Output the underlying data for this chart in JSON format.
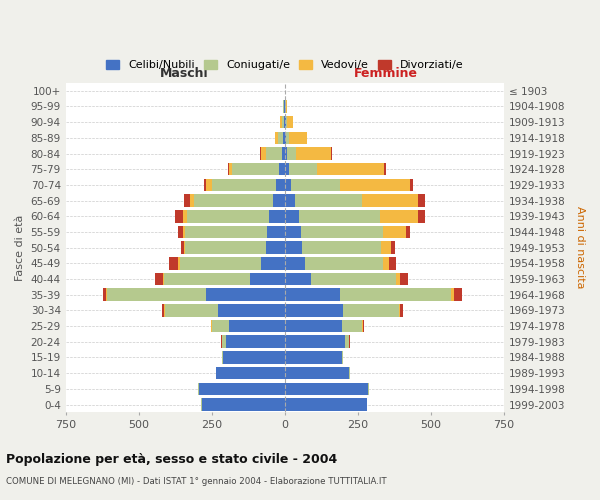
{
  "age_groups": [
    "0-4",
    "5-9",
    "10-14",
    "15-19",
    "20-24",
    "25-29",
    "30-34",
    "35-39",
    "40-44",
    "45-49",
    "50-54",
    "55-59",
    "60-64",
    "65-69",
    "70-74",
    "75-79",
    "80-84",
    "85-89",
    "90-94",
    "95-99",
    "100+"
  ],
  "birth_years": [
    "1999-2003",
    "1994-1998",
    "1989-1993",
    "1984-1988",
    "1979-1983",
    "1974-1978",
    "1969-1973",
    "1964-1968",
    "1959-1963",
    "1954-1958",
    "1949-1953",
    "1944-1948",
    "1939-1943",
    "1934-1938",
    "1929-1933",
    "1924-1928",
    "1919-1923",
    "1914-1918",
    "1909-1913",
    "1904-1908",
    "≤ 1903"
  ],
  "males": {
    "celibi": [
      285,
      295,
      235,
      210,
      200,
      190,
      230,
      270,
      120,
      80,
      65,
      60,
      55,
      40,
      30,
      20,
      10,
      5,
      3,
      2,
      0
    ],
    "coniugati": [
      2,
      3,
      2,
      5,
      15,
      60,
      180,
      340,
      295,
      280,
      275,
      280,
      280,
      270,
      220,
      160,
      55,
      20,
      8,
      3,
      0
    ],
    "vedovi": [
      0,
      0,
      0,
      0,
      1,
      1,
      2,
      3,
      3,
      5,
      5,
      10,
      15,
      15,
      20,
      10,
      18,
      10,
      5,
      2,
      0
    ],
    "divorziati": [
      0,
      0,
      0,
      0,
      1,
      2,
      8,
      8,
      25,
      30,
      10,
      15,
      25,
      20,
      8,
      5,
      2,
      0,
      0,
      0,
      0
    ]
  },
  "females": {
    "nubili": [
      280,
      285,
      220,
      195,
      205,
      195,
      200,
      190,
      90,
      70,
      60,
      55,
      50,
      35,
      20,
      15,
      8,
      5,
      4,
      2,
      0
    ],
    "coniugate": [
      2,
      3,
      2,
      5,
      15,
      70,
      190,
      380,
      290,
      265,
      270,
      280,
      275,
      230,
      170,
      95,
      30,
      10,
      5,
      2,
      0
    ],
    "vedove": [
      0,
      0,
      0,
      0,
      1,
      2,
      5,
      10,
      15,
      20,
      35,
      80,
      130,
      190,
      240,
      230,
      120,
      60,
      20,
      5,
      0
    ],
    "divorziate": [
      0,
      0,
      0,
      0,
      1,
      3,
      8,
      25,
      25,
      25,
      12,
      15,
      25,
      25,
      10,
      8,
      2,
      0,
      0,
      0,
      0
    ]
  },
  "colors": {
    "celibi": "#4472c4",
    "coniugati": "#b5c98e",
    "vedovi": "#f4b942",
    "divorziati": "#c0392b"
  },
  "legend_labels": [
    "Celibi/Nubili",
    "Coniugati/e",
    "Vedovi/e",
    "Divorziati/e"
  ],
  "legend_colors": [
    "#4472c4",
    "#b5c98e",
    "#f4b942",
    "#c0392b"
  ],
  "title": "Popolazione per età, sesso e stato civile - 2004",
  "subtitle": "COMUNE DI MELEGNANO (MI) - Dati ISTAT 1° gennaio 2004 - Elaborazione TUTTITALIA.IT",
  "xlabel_left": "Maschi",
  "xlabel_right": "Femmine",
  "ylabel_left": "Fasce di età",
  "ylabel_right": "Anni di nascita",
  "xlim": 750,
  "background_color": "#f0f0eb",
  "plot_bg_color": "#ffffff",
  "grid_color": "#cccccc",
  "bar_height": 0.8
}
